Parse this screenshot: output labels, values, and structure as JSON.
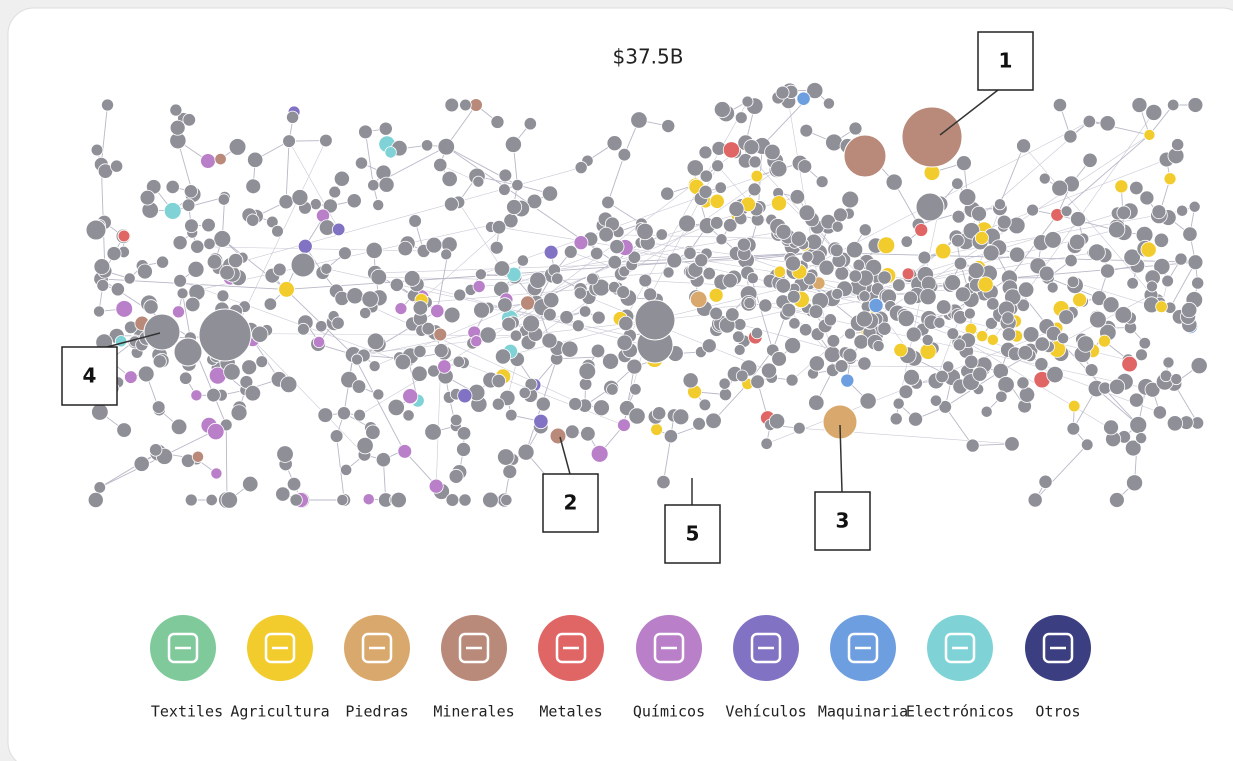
{
  "header": {
    "title": "$37.5B"
  },
  "callouts": [
    "1",
    "2",
    "3",
    "4",
    "5"
  ],
  "legend": [
    {
      "label": "Textiles",
      "color": "#7fc99a"
    },
    {
      "label": "Agricultura",
      "color": "#f2cc2c"
    },
    {
      "label": "Piedras",
      "color": "#d9a86c"
    },
    {
      "label": "Minerales",
      "color": "#b98a7a"
    },
    {
      "label": "Metales",
      "color": "#e06666"
    },
    {
      "label": "Químicos",
      "color": "#b97fc9"
    },
    {
      "label": "Vehículos",
      "color": "#8272c4"
    },
    {
      "label": "Maquinaria",
      "color": "#6d9ee0"
    },
    {
      "label": "Electrónicos",
      "color": "#7fd3d6"
    },
    {
      "label": "Otros",
      "color": "#3b3f82"
    }
  ]
}
